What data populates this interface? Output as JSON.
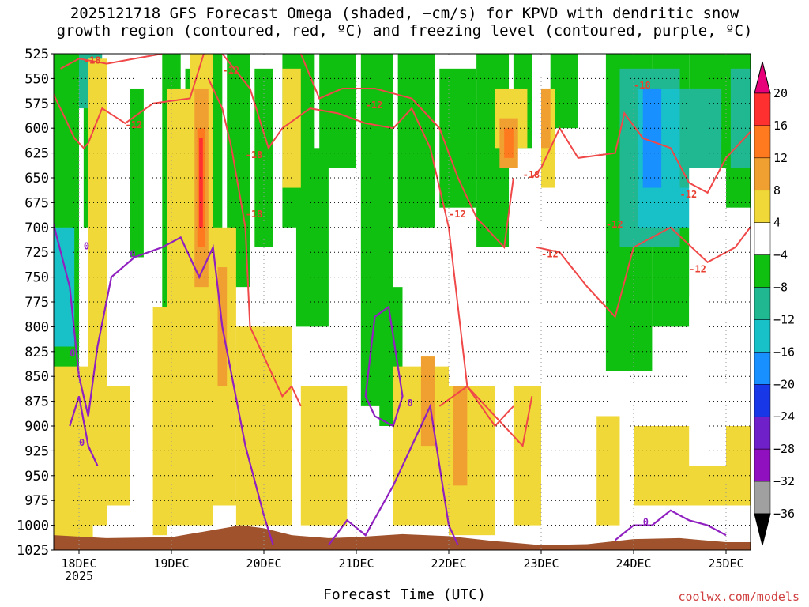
{
  "title_line1": "2025121718 GFS Forecast Omega (shaded, −cm/s) for KPVD with dendritic snow",
  "title_line2": "growth region (contoured, red, ºC) and freezing level (contoured, purple, ºC)",
  "credit": "coolwx.com/models",
  "chart_data": {
    "type": "heatmap",
    "title": "2025121718 GFS Forecast Omega (shaded, −cm/s) for KPVD with dendritic snow growth region (contoured, red, ºC) and freezing level (contoured, purple, ºC)",
    "xlabel": "Forecast Time (UTC)",
    "ylabel": "",
    "x_ticks": [
      "18DEC",
      "19DEC",
      "20DEC",
      "21DEC",
      "22DEC",
      "23DEC",
      "24DEC",
      "25DEC"
    ],
    "x_year_label": "2025",
    "y_ticks": [
      525,
      550,
      575,
      600,
      625,
      650,
      675,
      700,
      725,
      750,
      775,
      800,
      825,
      850,
      875,
      900,
      925,
      950,
      975,
      1000,
      1025
    ],
    "y_range": [
      525,
      1025
    ],
    "colorbar": {
      "levels": [
        20,
        16,
        12,
        8,
        4,
        -4,
        -8,
        -12,
        -16,
        -20,
        -24,
        -28,
        -32,
        -36
      ],
      "colors": [
        "#e8007a",
        "#ff3030",
        "#ff7a1e",
        "#f0a030",
        "#f0d838",
        "#ffffff",
        "#10c010",
        "#20b890",
        "#18c0c8",
        "#1890ff",
        "#1838e8",
        "#7020c8",
        "#9010c0",
        "#a0a0a0"
      ],
      "labels": [
        "20",
        "16",
        "12",
        "8",
        "4",
        "−4",
        "−8",
        "−12",
        "−16",
        "−20",
        "−24",
        "−28",
        "−32",
        "−36"
      ]
    },
    "contour_labels_red": [
      "-18",
      "-12",
      "-12",
      "-18",
      "-12",
      "-18",
      "-12",
      "-18",
      "-12",
      "-18",
      "-12",
      "-12",
      "-12"
    ],
    "contour_labels_purple": [
      "0",
      "0",
      "0",
      "0",
      "0",
      "0"
    ],
    "grid": true
  }
}
